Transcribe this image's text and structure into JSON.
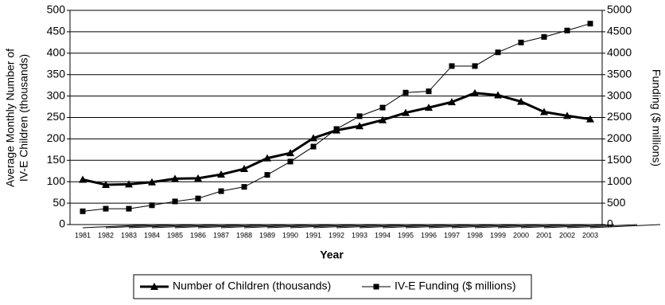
{
  "chart_data": {
    "type": "line",
    "ylabel": [
      "Average Monthly Number of",
      "IV-E Children (thousands)"
    ],
    "y2label": "Funding ($ millions)",
    "xlabel": "Year",
    "categories": [
      "1981",
      "1982",
      "1983",
      "1984",
      "1985",
      "1986",
      "1987",
      "1988",
      "1989",
      "1990",
      "1991",
      "1992",
      "1993",
      "1994",
      "1995",
      "1996",
      "1997",
      "1998",
      "1999",
      "2000",
      "2001",
      "2002",
      "2003"
    ],
    "series": [
      {
        "name": "Number of Children (thousands)",
        "color": "#000000",
        "marker": "triangle",
        "line_width": 3,
        "values": [
          105,
          93,
          94,
          99,
          107,
          108,
          117,
          130,
          155,
          167,
          202,
          220,
          230,
          244,
          261,
          273,
          286,
          307,
          302,
          287,
          263,
          254,
          246
        ]
      },
      {
        "name": "IV-E Funding ($ millions)",
        "color": "#000000",
        "marker": "square",
        "line_width": 1,
        "axis": "y2",
        "values": [
          310,
          370,
          370,
          450,
          540,
          610,
          780,
          880,
          1160,
          1470,
          1820,
          2230,
          2530,
          2730,
          3080,
          3110,
          3700,
          3700,
          4020,
          4250,
          4380,
          4530,
          4690
        ]
      }
    ],
    "ylim": [
      0,
      500
    ],
    "yticks": [
      0,
      50,
      100,
      150,
      200,
      250,
      300,
      350,
      400,
      450,
      500
    ],
    "y2lim": [
      0,
      5000
    ],
    "y2ticks": [
      0,
      500,
      1000,
      1500,
      2000,
      2500,
      3000,
      3500,
      4000,
      4500,
      5000
    ],
    "grid": true,
    "legend": "bottom"
  }
}
